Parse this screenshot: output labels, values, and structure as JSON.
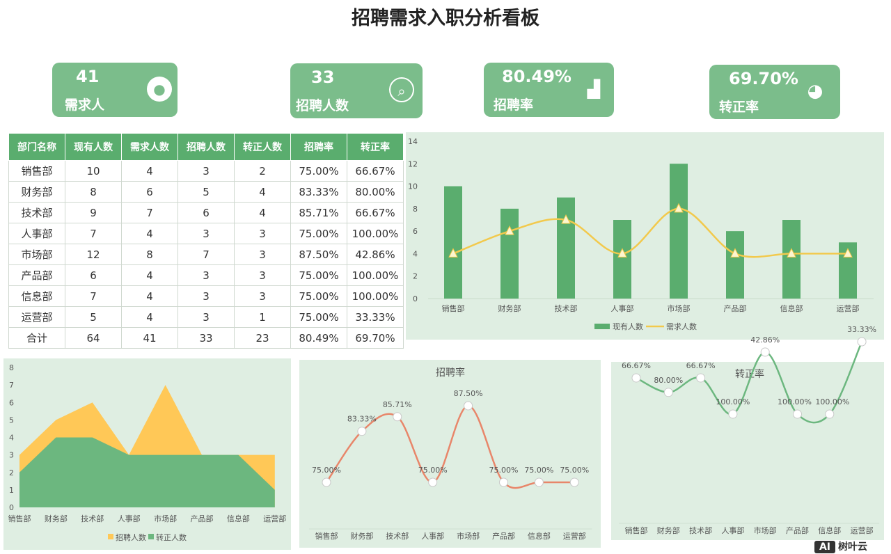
{
  "title": "招聘需求入职分析看板",
  "kpis": [
    {
      "value": "41",
      "label": "需求人",
      "icon": "person-icon"
    },
    {
      "value": "33",
      "label": "招聘人数",
      "icon": "search-person-icon"
    },
    {
      "value": "80.49%",
      "label": "招聘率",
      "icon": "bar-chart-icon"
    },
    {
      "value": "69.70%",
      "label": "转正率",
      "icon": "pie-chart-icon"
    }
  ],
  "table": {
    "headers": [
      "部门名称",
      "现有人数",
      "需求人数",
      "招聘人数",
      "转正人数",
      "招聘率",
      "转正率"
    ],
    "rows": [
      [
        "销售部",
        "10",
        "4",
        "3",
        "2",
        "75.00%",
        "66.67%"
      ],
      [
        "财务部",
        "8",
        "6",
        "5",
        "4",
        "83.33%",
        "80.00%"
      ],
      [
        "技术部",
        "9",
        "7",
        "6",
        "4",
        "85.71%",
        "66.67%"
      ],
      [
        "人事部",
        "7",
        "4",
        "3",
        "3",
        "75.00%",
        "100.00%"
      ],
      [
        "市场部",
        "12",
        "8",
        "7",
        "3",
        "87.50%",
        "42.86%"
      ],
      [
        "产品部",
        "6",
        "4",
        "3",
        "3",
        "75.00%",
        "100.00%"
      ],
      [
        "信息部",
        "7",
        "4",
        "3",
        "3",
        "75.00%",
        "100.00%"
      ],
      [
        "运营部",
        "5",
        "4",
        "3",
        "1",
        "75.00%",
        "33.33%"
      ],
      [
        "合计",
        "64",
        "41",
        "33",
        "23",
        "80.49%",
        "69.70%"
      ]
    ]
  },
  "chart_data": [
    {
      "type": "bar",
      "categories": [
        "销售部",
        "财务部",
        "技术部",
        "人事部",
        "市场部",
        "产品部",
        "信息部",
        "运营部"
      ],
      "series": [
        {
          "name": "现有人数",
          "kind": "bar",
          "values": [
            10,
            8,
            9,
            7,
            12,
            6,
            7,
            5
          ],
          "color": "#5aad6e"
        },
        {
          "name": "需求人数",
          "kind": "line",
          "values": [
            4,
            6,
            7,
            4,
            8,
            4,
            4,
            4
          ],
          "color": "#f2c94c"
        }
      ],
      "ylim": [
        0,
        14
      ],
      "yticks": [
        0,
        2,
        4,
        6,
        8,
        10,
        12,
        14
      ],
      "legend": "bottom"
    },
    {
      "type": "area",
      "categories": [
        "销售部",
        "财务部",
        "技术部",
        "人事部",
        "市场部",
        "产品部",
        "信息部",
        "运营部"
      ],
      "series": [
        {
          "name": "招聘人数",
          "values": [
            3,
            5,
            6,
            3,
            7,
            3,
            3,
            3
          ],
          "color": "#ffc857"
        },
        {
          "name": "转正人数",
          "values": [
            2,
            4,
            4,
            3,
            3,
            3,
            3,
            1
          ],
          "color": "#6cb77f"
        }
      ],
      "ylim": [
        0,
        8
      ],
      "yticks": [
        0,
        1,
        2,
        3,
        4,
        5,
        6,
        7,
        8
      ],
      "legend": "bottom"
    },
    {
      "type": "line",
      "title": "招聘率",
      "categories": [
        "销售部",
        "财务部",
        "技术部",
        "人事部",
        "市场部",
        "产品部",
        "信息部",
        "运营部"
      ],
      "values": [
        75.0,
        83.33,
        85.71,
        75.0,
        87.5,
        75.0,
        75.0,
        75.0
      ],
      "labels": [
        "75.00%",
        "83.33%",
        "85.71%",
        "75.00%",
        "87.50%",
        "75.00%",
        "75.00%",
        "75.00%"
      ],
      "color": "#e8866a"
    },
    {
      "type": "line",
      "title": "转正率",
      "categories": [
        "销售部",
        "财务部",
        "技术部",
        "人事部",
        "市场部",
        "产品部",
        "信息部",
        "运营部"
      ],
      "values": [
        66.67,
        80.0,
        66.67,
        100.0,
        42.86,
        100.0,
        100.0,
        33.33
      ],
      "labels": [
        "66.67%",
        "80.00%",
        "66.67%",
        "100.00%",
        "42.86%",
        "100.00%",
        "100.00%",
        "33.33%"
      ],
      "color": "#6cb77f"
    }
  ],
  "watermark": {
    "badge": "AI",
    "text": "树叶云"
  }
}
